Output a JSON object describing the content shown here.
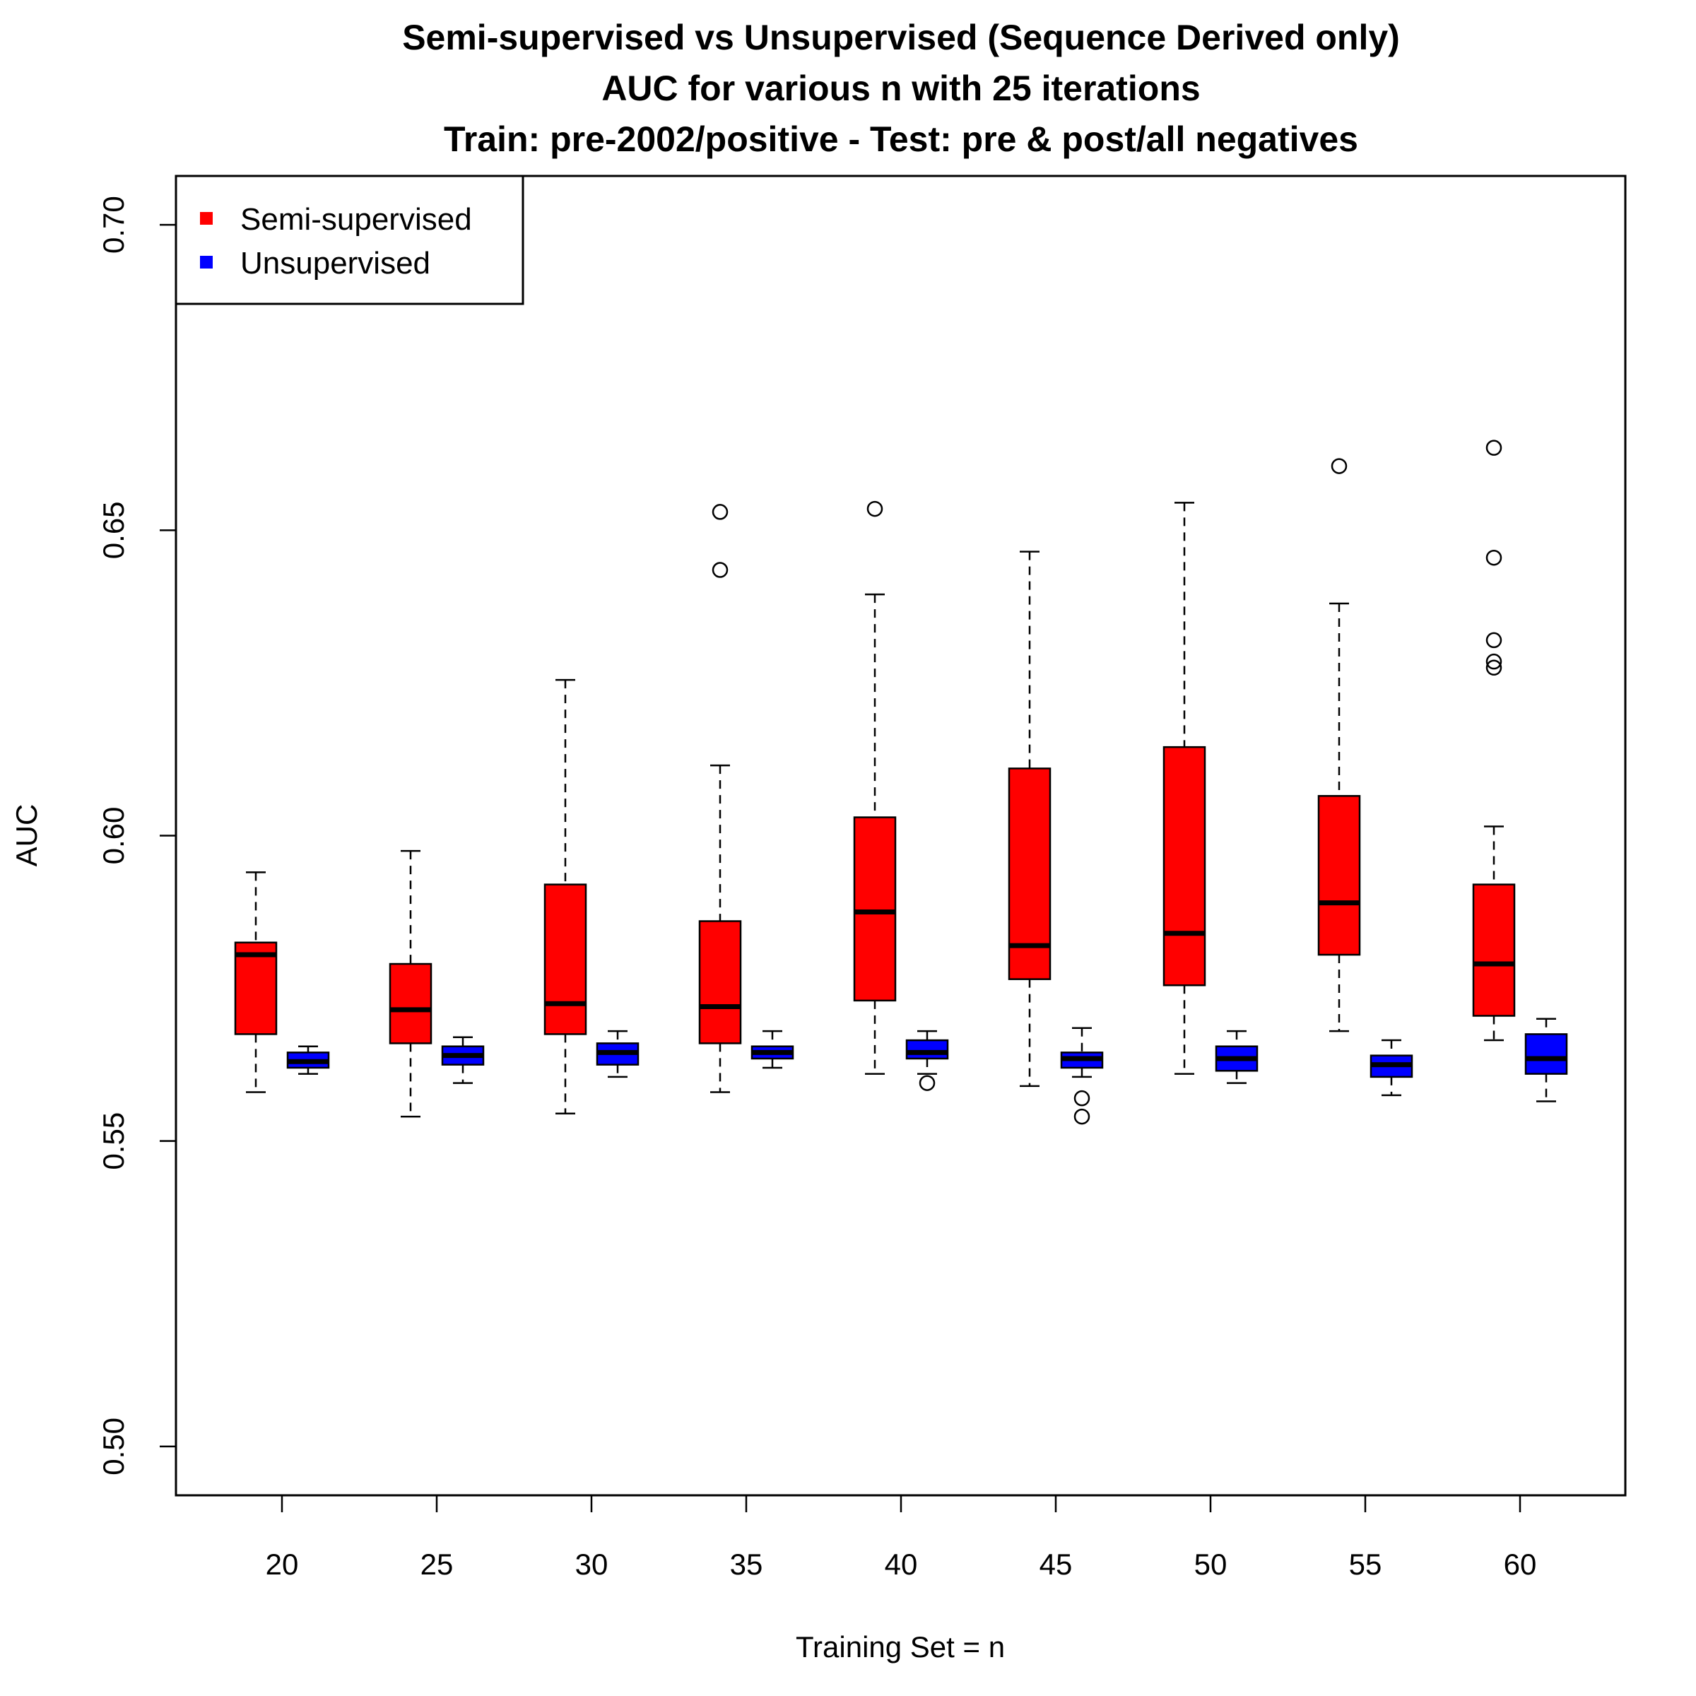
{
  "chart_data": {
    "type": "boxplot",
    "title": [
      "Semi-supervised vs Unsupervised (Sequence Derived only)",
      "AUC for various n with 25 iterations",
      "Train: pre-2002/positive - Test: pre & post/all negatives"
    ],
    "xlabel": "Training Set = n",
    "ylabel": "AUC",
    "ylim": [
      0.492,
      0.708
    ],
    "yticks": [
      "0.50",
      "0.55",
      "0.60",
      "0.65",
      "0.70"
    ],
    "categories": [
      "20",
      "25",
      "30",
      "35",
      "40",
      "45",
      "50",
      "55",
      "60"
    ],
    "legend": {
      "position": "top-left"
    },
    "series": [
      {
        "name": "Semi-supervised",
        "color": "#ff0000",
        "boxes": [
          {
            "whisker_low": 0.558,
            "q1": 0.5675,
            "median": 0.5805,
            "q3": 0.5825,
            "whisker_high": 0.594,
            "outliers": []
          },
          {
            "whisker_low": 0.554,
            "q1": 0.566,
            "median": 0.5715,
            "q3": 0.579,
            "whisker_high": 0.5975,
            "outliers": []
          },
          {
            "whisker_low": 0.5545,
            "q1": 0.5675,
            "median": 0.5725,
            "q3": 0.592,
            "whisker_high": 0.6255,
            "outliers": []
          },
          {
            "whisker_low": 0.558,
            "q1": 0.566,
            "median": 0.572,
            "q3": 0.586,
            "whisker_high": 0.6115,
            "outliers": [
              0.653,
              0.6435
            ]
          },
          {
            "whisker_low": 0.561,
            "q1": 0.573,
            "median": 0.5875,
            "q3": 0.603,
            "whisker_high": 0.6395,
            "outliers": [
              0.6535
            ]
          },
          {
            "whisker_low": 0.559,
            "q1": 0.5765,
            "median": 0.582,
            "q3": 0.611,
            "whisker_high": 0.6465,
            "outliers": []
          },
          {
            "whisker_low": 0.561,
            "q1": 0.5755,
            "median": 0.584,
            "q3": 0.6145,
            "whisker_high": 0.6545,
            "outliers": []
          },
          {
            "whisker_low": 0.568,
            "q1": 0.5805,
            "median": 0.589,
            "q3": 0.6065,
            "whisker_high": 0.638,
            "outliers": [
              0.6605
            ]
          },
          {
            "whisker_low": 0.5665,
            "q1": 0.5705,
            "median": 0.579,
            "q3": 0.592,
            "whisker_high": 0.6015,
            "outliers": [
              0.6635,
              0.6455,
              0.632,
              0.6285,
              0.6275
            ]
          }
        ]
      },
      {
        "name": "Unsupervised",
        "color": "#0000ff",
        "boxes": [
          {
            "whisker_low": 0.561,
            "q1": 0.562,
            "median": 0.563,
            "q3": 0.5645,
            "whisker_high": 0.5655,
            "outliers": []
          },
          {
            "whisker_low": 0.5595,
            "q1": 0.5625,
            "median": 0.564,
            "q3": 0.5655,
            "whisker_high": 0.567,
            "outliers": []
          },
          {
            "whisker_low": 0.5605,
            "q1": 0.5625,
            "median": 0.5645,
            "q3": 0.566,
            "whisker_high": 0.568,
            "outliers": []
          },
          {
            "whisker_low": 0.562,
            "q1": 0.5635,
            "median": 0.5645,
            "q3": 0.5655,
            "whisker_high": 0.568,
            "outliers": []
          },
          {
            "whisker_low": 0.561,
            "q1": 0.5635,
            "median": 0.5645,
            "q3": 0.5665,
            "whisker_high": 0.568,
            "outliers": [
              0.5595
            ]
          },
          {
            "whisker_low": 0.5605,
            "q1": 0.562,
            "median": 0.5635,
            "q3": 0.5645,
            "whisker_high": 0.5685,
            "outliers": [
              0.557,
              0.554
            ]
          },
          {
            "whisker_low": 0.5595,
            "q1": 0.5615,
            "median": 0.5635,
            "q3": 0.5655,
            "whisker_high": 0.568,
            "outliers": []
          },
          {
            "whisker_low": 0.5575,
            "q1": 0.5605,
            "median": 0.5625,
            "q3": 0.564,
            "whisker_high": 0.5665,
            "outliers": []
          },
          {
            "whisker_low": 0.5565,
            "q1": 0.561,
            "median": 0.5635,
            "q3": 0.5675,
            "whisker_high": 0.57,
            "outliers": []
          }
        ]
      }
    ]
  }
}
